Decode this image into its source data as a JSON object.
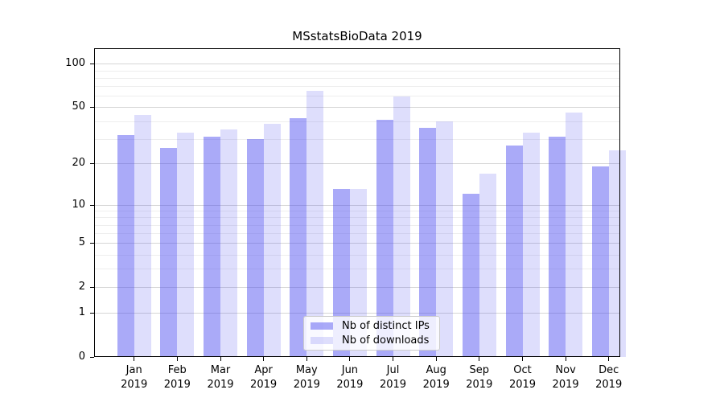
{
  "title": "MSstatsBioData 2019",
  "chart_data": {
    "type": "bar",
    "title": "MSstatsBioData 2019",
    "categories": [
      "Jan",
      "Feb",
      "Mar",
      "Apr",
      "May",
      "Jun",
      "Jul",
      "Aug",
      "Sep",
      "Oct",
      "Nov",
      "Dec"
    ],
    "year": "2019",
    "series": [
      {
        "name": "Nb of distinct IPs",
        "color": "#aaaaf8",
        "color_rgba": "rgba(70,70,240,0.46)",
        "values": [
          32,
          26,
          31,
          30,
          42,
          13,
          41,
          36,
          12,
          27,
          31,
          19
        ]
      },
      {
        "name": "Nb of downloads",
        "color": "#dcdcf9",
        "color_rgba": "rgba(70,70,240,0.18)",
        "values": [
          44,
          33,
          35,
          38,
          65,
          13,
          59,
          40,
          17,
          33,
          46,
          25
        ]
      }
    ],
    "yscale": "log10(1+value)",
    "ylim": [
      0,
      127
    ],
    "yticks": [
      100,
      50,
      20,
      10,
      5,
      2,
      1,
      0
    ],
    "minor_gridlines": [
      3,
      4,
      6,
      7,
      8,
      9,
      30,
      40,
      60,
      70,
      80,
      90
    ],
    "grid": true,
    "legend_position": "inside-bottom-center",
    "xlabel": "",
    "ylabel": ""
  },
  "legend": {
    "items": [
      {
        "label": "Nb of distinct IPs"
      },
      {
        "label": "Nb of downloads"
      }
    ]
  },
  "colors": {
    "bar_distinct_ips": "#aaaaf8",
    "bar_downloads": "#dcdcf9",
    "grid_major": "#d6d6d6",
    "grid_minor": "#eeeeee",
    "frame": "#000000",
    "legend_border": "#cccccc"
  }
}
